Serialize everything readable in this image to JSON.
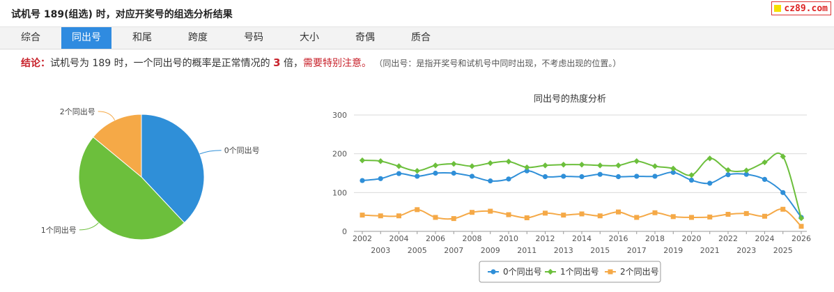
{
  "header": {
    "title": "试机号 189(组选) 时，对应开奖号的组选分析结果"
  },
  "watermark": {
    "text": "cz89.com"
  },
  "tabs": [
    {
      "label": "综合",
      "active": false
    },
    {
      "label": "同出号",
      "active": true
    },
    {
      "label": "和尾",
      "active": false
    },
    {
      "label": "跨度",
      "active": false
    },
    {
      "label": "号码",
      "active": false
    },
    {
      "label": "大小",
      "active": false
    },
    {
      "label": "奇偶",
      "active": false
    },
    {
      "label": "质合",
      "active": false
    }
  ],
  "conclusion": {
    "label": "结论：",
    "text1": "试机号为 189 时，一个同出号的概率是正常情况的",
    "multiple": "3",
    "text2": "倍，",
    "warning": "需要特别注意。",
    "note": "（同出号：是指开奖号和试机号中同时出现，不考虑出现的位置。）"
  },
  "colors": {
    "series0": "#2f8fd8",
    "series1": "#6cbf3c",
    "series2": "#f5a947",
    "active_tab": "#2f8be0",
    "accent_red": "#c8232c"
  },
  "chart_data": [
    {
      "type": "pie",
      "slices": [
        {
          "label": "0个同出号",
          "value": 38
        },
        {
          "label": "1个同出号",
          "value": 48
        },
        {
          "label": "2个同出号",
          "value": 14
        }
      ]
    },
    {
      "type": "line",
      "title": "同出号的热度分析",
      "x": [
        "2002",
        "2003",
        "2004",
        "2005",
        "2006",
        "2007",
        "2008",
        "2009",
        "2010",
        "2011",
        "2012",
        "2013",
        "2014",
        "2015",
        "2016",
        "2017",
        "2018",
        "2019",
        "2020",
        "2021",
        "2022",
        "2023",
        "2024",
        "2025",
        "2026"
      ],
      "ylim": [
        0,
        300
      ],
      "yticks": [
        "0",
        "100",
        "200",
        "300"
      ],
      "grid": true,
      "legend_position": "bottom",
      "series": [
        {
          "name": "0个同出号",
          "marker": "circle",
          "values": [
            131,
            136,
            149,
            142,
            150,
            150,
            142,
            130,
            135,
            156,
            141,
            142,
            141,
            147,
            141,
            142,
            142,
            152,
            132,
            124,
            146,
            147,
            134,
            100,
            36
          ]
        },
        {
          "name": "1个同出号",
          "marker": "diamond",
          "values": [
            183,
            181,
            168,
            156,
            170,
            174,
            168,
            176,
            180,
            165,
            170,
            172,
            172,
            170,
            170,
            181,
            168,
            162,
            145,
            188,
            158,
            157,
            178,
            193,
            34
          ]
        },
        {
          "name": "2个同出号",
          "marker": "square",
          "values": [
            42,
            40,
            40,
            56,
            36,
            33,
            49,
            52,
            43,
            35,
            47,
            42,
            45,
            40,
            50,
            36,
            48,
            38,
            36,
            37,
            44,
            46,
            39,
            57,
            13
          ]
        }
      ]
    }
  ]
}
